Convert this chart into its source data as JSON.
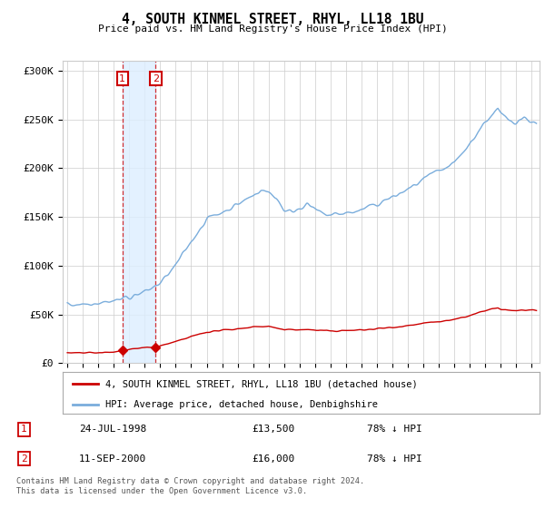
{
  "title": "4, SOUTH KINMEL STREET, RHYL, LL18 1BU",
  "subtitle": "Price paid vs. HM Land Registry's House Price Index (HPI)",
  "ylabel_ticks": [
    "£0",
    "£50K",
    "£100K",
    "£150K",
    "£200K",
    "£250K",
    "£300K"
  ],
  "ytick_values": [
    0,
    50000,
    100000,
    150000,
    200000,
    250000,
    300000
  ],
  "ylim": [
    0,
    310000
  ],
  "xlim_start": 1994.7,
  "xlim_end": 2025.5,
  "sale1_date": 1998.56,
  "sale1_price": 13500,
  "sale2_date": 2000.71,
  "sale2_price": 16000,
  "legend_line1": "4, SOUTH KINMEL STREET, RHYL, LL18 1BU (detached house)",
  "legend_line2": "HPI: Average price, detached house, Denbighshire",
  "table_row1": [
    "1",
    "24-JUL-1998",
    "£13,500",
    "78% ↓ HPI"
  ],
  "table_row2": [
    "2",
    "11-SEP-2000",
    "£16,000",
    "78% ↓ HPI"
  ],
  "footnote": "Contains HM Land Registry data © Crown copyright and database right 2024.\nThis data is licensed under the Open Government Licence v3.0.",
  "hpi_color": "#7aaddc",
  "price_color": "#cc0000",
  "sale_marker_color": "#cc0000",
  "annotation_box_color": "#cc0000",
  "shade_color": "#ddeeff",
  "grid_color": "#cccccc",
  "background_color": "#ffffff",
  "hpi_curve_points": [
    [
      1995.0,
      60000
    ],
    [
      1996.0,
      61000
    ],
    [
      1997.0,
      62500
    ],
    [
      1998.0,
      64000
    ],
    [
      1999.0,
      68000
    ],
    [
      2000.0,
      73000
    ],
    [
      2001.0,
      82000
    ],
    [
      2002.0,
      100000
    ],
    [
      2003.0,
      125000
    ],
    [
      2004.0,
      148000
    ],
    [
      2005.0,
      155000
    ],
    [
      2006.0,
      163000
    ],
    [
      2007.0,
      172000
    ],
    [
      2007.5,
      178000
    ],
    [
      2008.0,
      175000
    ],
    [
      2008.5,
      170000
    ],
    [
      2009.0,
      157000
    ],
    [
      2009.5,
      155000
    ],
    [
      2010.0,
      160000
    ],
    [
      2010.5,
      163000
    ],
    [
      2011.0,
      157000
    ],
    [
      2011.5,
      153000
    ],
    [
      2012.0,
      152000
    ],
    [
      2012.5,
      153000
    ],
    [
      2013.0,
      154000
    ],
    [
      2013.5,
      155000
    ],
    [
      2014.0,
      157000
    ],
    [
      2014.5,
      160000
    ],
    [
      2015.0,
      163000
    ],
    [
      2015.5,
      167000
    ],
    [
      2016.0,
      170000
    ],
    [
      2016.5,
      174000
    ],
    [
      2017.0,
      178000
    ],
    [
      2017.5,
      183000
    ],
    [
      2018.0,
      188000
    ],
    [
      2018.5,
      193000
    ],
    [
      2019.0,
      196000
    ],
    [
      2019.5,
      200000
    ],
    [
      2020.0,
      205000
    ],
    [
      2020.5,
      215000
    ],
    [
      2021.0,
      225000
    ],
    [
      2021.5,
      237000
    ],
    [
      2022.0,
      248000
    ],
    [
      2022.5,
      255000
    ],
    [
      2022.8,
      260000
    ],
    [
      2023.0,
      255000
    ],
    [
      2023.5,
      250000
    ],
    [
      2024.0,
      248000
    ],
    [
      2024.5,
      252000
    ],
    [
      2025.0,
      248000
    ],
    [
      2025.3,
      245000
    ]
  ],
  "red_curve_points": [
    [
      1995.0,
      10200
    ],
    [
      1996.0,
      10500
    ],
    [
      1997.0,
      10800
    ],
    [
      1998.0,
      11000
    ],
    [
      1998.56,
      13500
    ],
    [
      1999.0,
      14500
    ],
    [
      2000.0,
      16000
    ],
    [
      2000.71,
      16000
    ],
    [
      2001.0,
      18000
    ],
    [
      2002.0,
      21800
    ],
    [
      2003.0,
      27200
    ],
    [
      2004.0,
      32000
    ],
    [
      2005.0,
      33600
    ],
    [
      2006.0,
      35400
    ],
    [
      2007.0,
      37300
    ],
    [
      2008.0,
      37900
    ],
    [
      2009.0,
      34000
    ],
    [
      2010.0,
      34700
    ],
    [
      2011.0,
      34100
    ],
    [
      2012.0,
      33000
    ],
    [
      2013.0,
      33400
    ],
    [
      2014.0,
      34100
    ],
    [
      2015.0,
      35400
    ],
    [
      2016.0,
      36900
    ],
    [
      2017.0,
      38700
    ],
    [
      2018.0,
      40800
    ],
    [
      2019.0,
      42600
    ],
    [
      2020.0,
      44500
    ],
    [
      2021.0,
      48900
    ],
    [
      2022.0,
      53800
    ],
    [
      2022.8,
      56500
    ],
    [
      2023.0,
      55300
    ],
    [
      2023.5,
      54300
    ],
    [
      2024.0,
      53900
    ],
    [
      2024.5,
      54700
    ],
    [
      2025.0,
      53900
    ],
    [
      2025.3,
      53200
    ]
  ]
}
